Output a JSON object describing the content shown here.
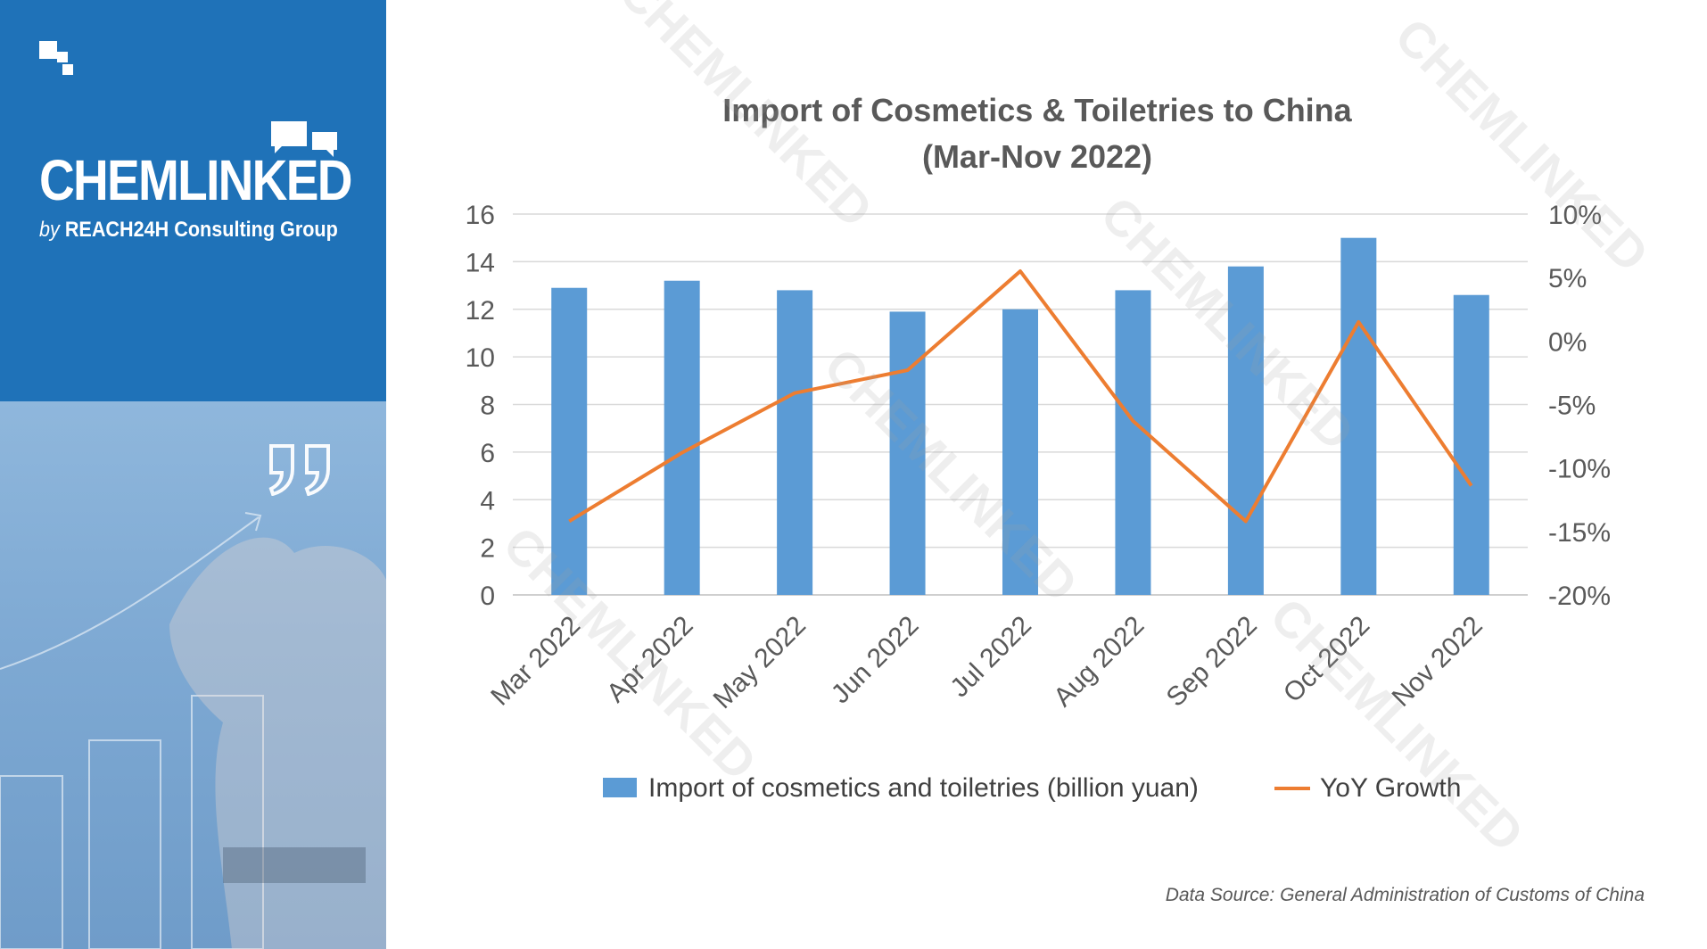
{
  "brand": {
    "name": "CHEMLINKED",
    "by": "by",
    "company": "REACH24H Consulting Group",
    "watermark_text": "CHEMLINKED"
  },
  "source_note": "Data Source: General Administration of Customs of China",
  "colors": {
    "bar": "#5b9bd5",
    "line": "#ed7d31",
    "sidebar": "#1f72b8"
  },
  "chart_data": {
    "type": "bar",
    "title": "Import of Cosmetics & Toiletries to China",
    "subtitle": "(Mar-Nov 2022)",
    "categories": [
      "Mar 2022",
      "Apr 2022",
      "May 2022",
      "Jun 2022",
      "Jul 2022",
      "Aug 2022",
      "Sep 2022",
      "Oct 2022",
      "Nov 2022"
    ],
    "series": [
      {
        "name": "Import of cosmetics and toiletries (billion yuan)",
        "type": "bar",
        "axis": "left",
        "values": [
          12.9,
          13.2,
          12.8,
          11.9,
          12.0,
          12.8,
          13.8,
          15.0,
          12.6
        ]
      },
      {
        "name": "YoY Growth",
        "type": "line",
        "axis": "right",
        "values": [
          -14.2,
          -8.8,
          -4.1,
          -2.3,
          5.5,
          -6.3,
          -14.2,
          1.5,
          -11.4
        ]
      }
    ],
    "y_left": {
      "min": 0,
      "max": 16,
      "ticks": [
        "0",
        "2",
        "4",
        "6",
        "8",
        "10",
        "12",
        "14",
        "16"
      ]
    },
    "y_right": {
      "min": -20,
      "max": 10,
      "ticks": [
        "-20%",
        "-15%",
        "-10%",
        "-5%",
        "0%",
        "5%",
        "10%"
      ]
    },
    "grid": true,
    "legend_position": "bottom"
  }
}
